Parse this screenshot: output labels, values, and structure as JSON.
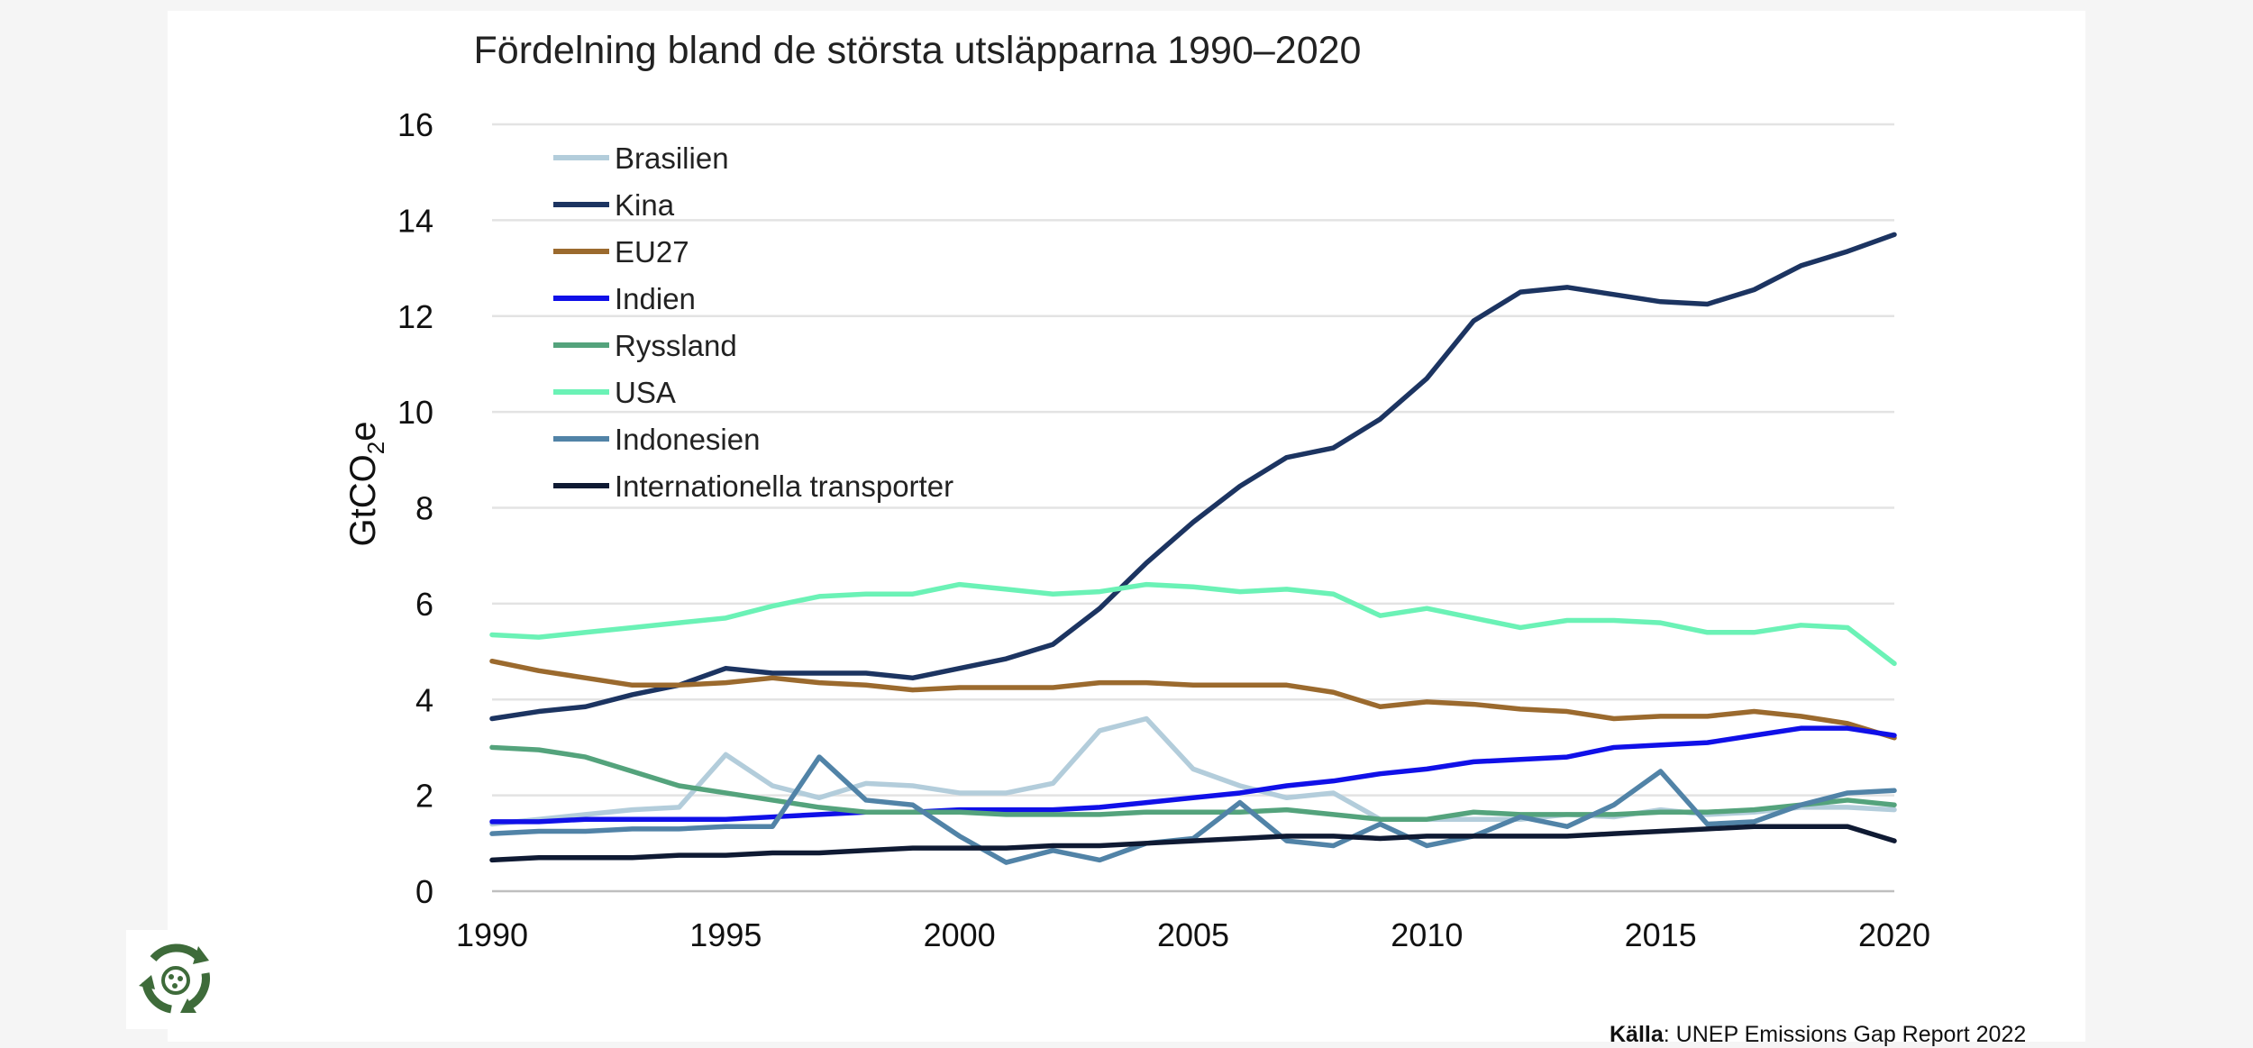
{
  "chart_data": {
    "type": "line",
    "title": "Fördelning bland de största utsläpparna 1990–2020",
    "ylabel_main": "GtCO",
    "ylabel_sub": "2",
    "ylabel_tail": "e",
    "xlabel": "",
    "xlim": [
      1990,
      2020
    ],
    "ylim": [
      0,
      16
    ],
    "yticks": [
      0,
      2,
      4,
      6,
      8,
      10,
      12,
      14,
      16
    ],
    "xticks": [
      1990,
      1995,
      2000,
      2005,
      2010,
      2015,
      2020
    ],
    "grid": true,
    "legend_position": "top-left",
    "x": [
      1990,
      1991,
      1992,
      1993,
      1994,
      1995,
      1996,
      1997,
      1998,
      1999,
      2000,
      2001,
      2002,
      2003,
      2004,
      2005,
      2006,
      2007,
      2008,
      2009,
      2010,
      2011,
      2012,
      2013,
      2014,
      2015,
      2016,
      2017,
      2018,
      2019,
      2020
    ],
    "series": [
      {
        "name": "Brasilien",
        "color": "#b3cddb",
        "values": [
          1.4,
          1.5,
          1.6,
          1.7,
          1.75,
          2.85,
          2.2,
          1.95,
          2.25,
          2.2,
          2.05,
          2.05,
          2.25,
          3.35,
          3.6,
          2.55,
          2.2,
          1.95,
          2.05,
          1.5,
          1.5,
          1.5,
          1.5,
          1.6,
          1.55,
          1.7,
          1.6,
          1.65,
          1.75,
          1.75,
          1.7
        ]
      },
      {
        "name": "Kina",
        "color": "#1c3461",
        "values": [
          3.6,
          3.75,
          3.85,
          4.1,
          4.3,
          4.65,
          4.55,
          4.55,
          4.55,
          4.45,
          4.65,
          4.85,
          5.15,
          5.9,
          6.85,
          7.7,
          8.45,
          9.05,
          9.25,
          9.85,
          10.7,
          11.9,
          12.5,
          12.6,
          12.45,
          12.3,
          12.25,
          12.55,
          13.05,
          13.35,
          13.7
        ]
      },
      {
        "name": "EU27",
        "color": "#9b6a2e",
        "values": [
          4.8,
          4.6,
          4.45,
          4.3,
          4.3,
          4.35,
          4.45,
          4.35,
          4.3,
          4.2,
          4.25,
          4.25,
          4.25,
          4.35,
          4.35,
          4.3,
          4.3,
          4.3,
          4.15,
          3.85,
          3.95,
          3.9,
          3.8,
          3.75,
          3.6,
          3.65,
          3.65,
          3.75,
          3.65,
          3.5,
          3.2
        ]
      },
      {
        "name": "Indien",
        "color": "#1010e8",
        "values": [
          1.45,
          1.45,
          1.5,
          1.5,
          1.5,
          1.5,
          1.55,
          1.6,
          1.65,
          1.65,
          1.7,
          1.7,
          1.7,
          1.75,
          1.85,
          1.95,
          2.05,
          2.2,
          2.3,
          2.45,
          2.55,
          2.7,
          2.75,
          2.8,
          3.0,
          3.05,
          3.1,
          3.25,
          3.4,
          3.4,
          3.25
        ]
      },
      {
        "name": "Ryssland",
        "color": "#54a37c",
        "values": [
          3.0,
          2.95,
          2.8,
          2.5,
          2.2,
          2.05,
          1.9,
          1.75,
          1.65,
          1.65,
          1.65,
          1.6,
          1.6,
          1.6,
          1.65,
          1.65,
          1.65,
          1.7,
          1.6,
          1.5,
          1.5,
          1.65,
          1.6,
          1.6,
          1.6,
          1.65,
          1.65,
          1.7,
          1.8,
          1.9,
          1.8
        ]
      },
      {
        "name": "USA",
        "color": "#6bf2b6",
        "values": [
          5.35,
          5.3,
          5.4,
          5.5,
          5.6,
          5.7,
          5.95,
          6.15,
          6.2,
          6.2,
          6.4,
          6.3,
          6.2,
          6.25,
          6.4,
          6.35,
          6.25,
          6.3,
          6.2,
          5.75,
          5.9,
          5.7,
          5.5,
          5.65,
          5.65,
          5.6,
          5.4,
          5.4,
          5.55,
          5.5,
          4.75
        ]
      },
      {
        "name": "Indonesien",
        "color": "#5183a7",
        "values": [
          1.2,
          1.25,
          1.25,
          1.3,
          1.3,
          1.35,
          1.35,
          2.8,
          1.9,
          1.8,
          1.15,
          0.6,
          0.85,
          0.65,
          1.0,
          1.1,
          1.85,
          1.05,
          0.95,
          1.4,
          0.95,
          1.15,
          1.55,
          1.35,
          1.8,
          2.5,
          1.4,
          1.45,
          1.8,
          2.05,
          2.1
        ]
      },
      {
        "name": "Internationella transporter",
        "color": "#0f1a33",
        "values": [
          0.65,
          0.7,
          0.7,
          0.7,
          0.75,
          0.75,
          0.8,
          0.8,
          0.85,
          0.9,
          0.9,
          0.9,
          0.95,
          0.95,
          1.0,
          1.05,
          1.1,
          1.15,
          1.15,
          1.1,
          1.15,
          1.15,
          1.15,
          1.15,
          1.2,
          1.25,
          1.3,
          1.35,
          1.35,
          1.35,
          1.05
        ]
      }
    ]
  },
  "source": {
    "label": "Källa",
    "text": ": UNEP Emissions Gap Report 2022"
  },
  "logo": {
    "icon": "recycle-globe-icon",
    "color": "#3e6b3a"
  }
}
